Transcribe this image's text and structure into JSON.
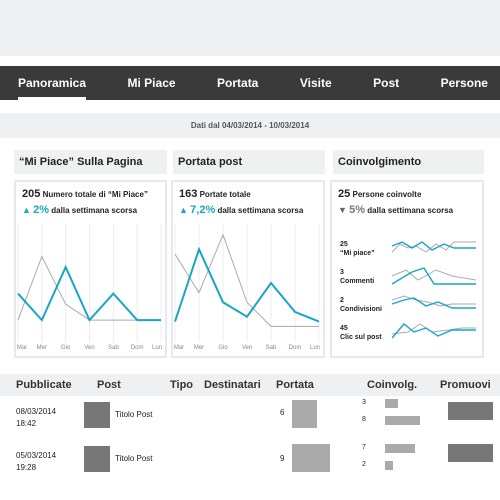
{
  "colors": {
    "accent": "#19a5c5",
    "secondary": "#aaaaaa",
    "navbar": "#3a3a3a",
    "panel": "#eef0f1"
  },
  "nav": {
    "items": [
      {
        "label": "Panoramica",
        "active": true
      },
      {
        "label": "Mi Piace"
      },
      {
        "label": "Portata"
      },
      {
        "label": "Visite"
      },
      {
        "label": "Post"
      },
      {
        "label": "Persone"
      }
    ]
  },
  "date_range": "Dati dal 04/03/2014 - 10/03/2014",
  "cards": {
    "likes": {
      "title": "“Mi Piace” Sulla Pagina",
      "total": "205",
      "total_label": "Numero totale di “Mi Piace”",
      "delta_icon": "triangle-up-icon",
      "delta": "2%",
      "delta_label": "dalla settimana scorsa"
    },
    "reach": {
      "title": "Portata post",
      "total": "163",
      "total_label": "Portate totale",
      "delta_icon": "triangle-up-icon",
      "delta": "7,2%",
      "delta_label": "dalla settimana scorsa"
    },
    "engagement": {
      "title": "Coinvolgimento",
      "total": "25",
      "total_label": "Persone coinvolte",
      "delta_icon": "triangle-down-icon",
      "delta": "5%",
      "delta_label": "dalla settimana scorsa",
      "metrics": [
        {
          "value": "25",
          "label": "“Mi piace”"
        },
        {
          "value": "3",
          "label": "Commenti"
        },
        {
          "value": "2",
          "label": "Condivisioni"
        },
        {
          "value": "45",
          "label": "Clic sul post"
        }
      ]
    }
  },
  "chart_data": [
    {
      "type": "line",
      "categories": [
        "Mar",
        "Mer",
        "Gio",
        "Ven",
        "Sab",
        "Dom",
        "Lun"
      ],
      "series": [
        {
          "values": [
            8,
            3,
            13,
            3,
            8,
            3,
            3
          ],
          "color": "#19a5c5"
        },
        {
          "values": [
            3,
            15,
            6,
            3,
            3,
            3,
            3
          ],
          "color": "#aaaaaa"
        }
      ],
      "ylim": [
        0,
        20
      ]
    },
    {
      "type": "line",
      "categories": [
        "Mar",
        "Mer",
        "Gio",
        "Ven",
        "Sab",
        "Dom",
        "Lun"
      ],
      "series": [
        {
          "values": [
            3,
            18,
            7,
            4,
            11,
            5,
            3
          ],
          "color": "#19a5c5"
        },
        {
          "values": [
            17,
            9,
            21,
            7,
            2,
            2,
            2
          ],
          "color": "#aaaaaa"
        }
      ],
      "ylim": [
        0,
        22
      ]
    }
  ],
  "table": {
    "headers": [
      "Pubblicate",
      "Post",
      "Tipo",
      "Destinatari",
      "Portata",
      "Coinvolg.",
      "Promuovi"
    ],
    "rows": [
      {
        "date": "08/03/2014",
        "time": "18:42",
        "title": "Titolo Post",
        "reach": "6",
        "reach_fraction": 0.6,
        "eng_top": "3",
        "eng_bottom": "8",
        "eng_top_fraction": 0.25,
        "eng_bottom_fraction": 0.7
      },
      {
        "date": "05/03/2014",
        "time": "19:28",
        "title": "Titolo Post",
        "reach": "9",
        "reach_fraction": 0.9,
        "eng_top": "7",
        "eng_bottom": "2",
        "eng_top_fraction": 0.6,
        "eng_bottom_fraction": 0.15
      }
    ]
  }
}
